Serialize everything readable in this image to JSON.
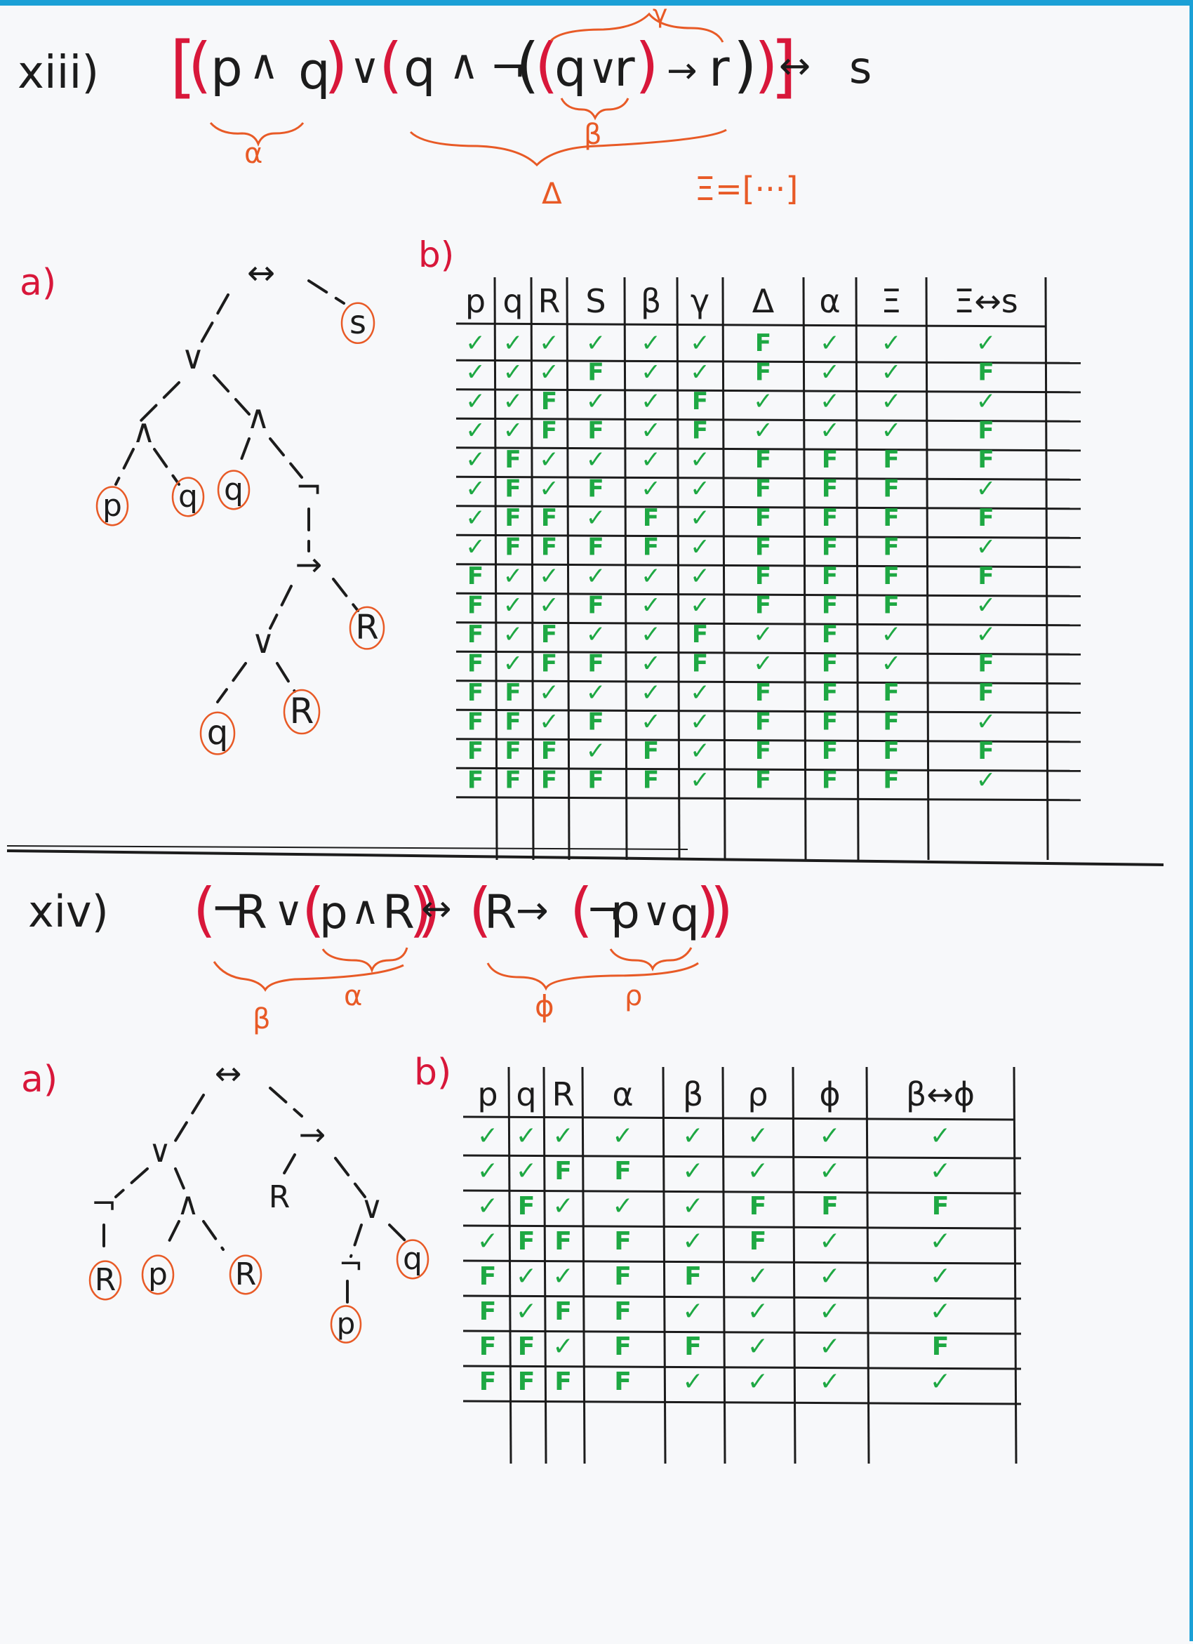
{
  "colors": {
    "ink": "#1c1c1c",
    "red": "#d8173a",
    "orange": "#e85a26",
    "green": "#1ea843",
    "paper": "#f7f8fa",
    "edge": "#1ba0d6"
  },
  "problem1": {
    "number": "xiii)",
    "formula_tokens": [
      "[",
      "(",
      "p",
      "∧",
      "q",
      ")",
      "∨",
      "(",
      "q",
      "∧",
      "¬",
      "(",
      "(",
      "q",
      "∨",
      "r",
      ")",
      "→",
      "r",
      ")",
      ")",
      "]",
      "↔",
      "s"
    ],
    "formula_text": "[(p ∧ q) ∨ (q ∧ ¬((q ∨ r) → r))] ↔ s",
    "sub_labels": {
      "alpha": "α",
      "beta": "β",
      "gamma": "γ",
      "delta": "Δ"
    },
    "xi_note": "Ξ=[···]",
    "part_a_label": "a)",
    "part_b_label": "b)",
    "tree": {
      "root": "↔",
      "nodes": [
        "↔",
        "∨",
        "s",
        "∧",
        "∧",
        "p",
        "q",
        "q",
        "¬",
        "→",
        "∨",
        "R",
        "q",
        "R"
      ],
      "leaves": [
        "p",
        "q",
        "q",
        "R",
        "q",
        "R",
        "s"
      ]
    },
    "table": {
      "headers": [
        "p",
        "q",
        "R",
        "S",
        "β",
        "γ",
        "Δ",
        "α",
        "Ξ",
        "Ξ↔s"
      ],
      "rows": [
        [
          "✓",
          "✓",
          "✓",
          "✓",
          "✓",
          "✓",
          "F",
          "✓",
          "✓",
          "✓"
        ],
        [
          "✓",
          "✓",
          "✓",
          "F",
          "✓",
          "✓",
          "F",
          "✓",
          "✓",
          "F"
        ],
        [
          "✓",
          "✓",
          "F",
          "✓",
          "✓",
          "F",
          "✓",
          "✓",
          "✓",
          "✓"
        ],
        [
          "✓",
          "✓",
          "F",
          "F",
          "✓",
          "F",
          "✓",
          "✓",
          "✓",
          "F"
        ],
        [
          "✓",
          "F",
          "✓",
          "✓",
          "✓",
          "✓",
          "F",
          "F",
          "F",
          "F"
        ],
        [
          "✓",
          "F",
          "✓",
          "F",
          "✓",
          "✓",
          "F",
          "F",
          "F",
          "✓"
        ],
        [
          "✓",
          "F",
          "F",
          "✓",
          "F",
          "✓",
          "F",
          "F",
          "F",
          "F"
        ],
        [
          "✓",
          "F",
          "F",
          "F",
          "F",
          "✓",
          "F",
          "F",
          "F",
          "✓"
        ],
        [
          "F",
          "✓",
          "✓",
          "✓",
          "✓",
          "✓",
          "F",
          "F",
          "F",
          "F"
        ],
        [
          "F",
          "✓",
          "✓",
          "F",
          "✓",
          "✓",
          "F",
          "F",
          "F",
          "✓"
        ],
        [
          "F",
          "✓",
          "F",
          "✓",
          "✓",
          "F",
          "✓",
          "F",
          "✓",
          "✓"
        ],
        [
          "F",
          "✓",
          "F",
          "F",
          "✓",
          "F",
          "✓",
          "F",
          "✓",
          "F"
        ],
        [
          "F",
          "F",
          "✓",
          "✓",
          "✓",
          "✓",
          "F",
          "F",
          "F",
          "F"
        ],
        [
          "F",
          "F",
          "✓",
          "F",
          "✓",
          "✓",
          "F",
          "F",
          "F",
          "✓"
        ],
        [
          "F",
          "F",
          "F",
          "✓",
          "F",
          "✓",
          "F",
          "F",
          "F",
          "F"
        ],
        [
          "F",
          "F",
          "F",
          "F",
          "F",
          "✓",
          "F",
          "F",
          "F",
          "✓"
        ]
      ]
    }
  },
  "problem2": {
    "number": "xiv)",
    "formula_tokens": [
      "(",
      "¬",
      "R",
      "∨",
      "(",
      "p",
      "∧",
      "R",
      ")",
      ")",
      "↔",
      "(",
      "R",
      "→",
      "(",
      "¬",
      "p",
      "∨",
      "q",
      ")",
      ")"
    ],
    "formula_text": "(¬R ∨ (p ∧ R)) ↔ (R → (¬p ∨ q))",
    "sub_labels": {
      "alpha": "α",
      "beta": "β",
      "phi": "ϕ",
      "rho": "ρ"
    },
    "part_a_label": "a)",
    "part_b_label": "b)",
    "tree": {
      "root": "↔",
      "nodes": [
        "↔",
        "∨",
        "→",
        "¬",
        "∧",
        "R",
        "∨",
        "R",
        "p",
        "R",
        "¬",
        "q",
        "p"
      ],
      "leaves": [
        "R",
        "p",
        "R",
        "R",
        "q",
        "p"
      ]
    },
    "table": {
      "headers": [
        "p",
        "q",
        "R",
        "α",
        "β",
        "ρ",
        "ϕ",
        "β↔ϕ"
      ],
      "rows": [
        [
          "✓",
          "✓",
          "✓",
          "✓",
          "✓",
          "✓",
          "✓",
          "✓"
        ],
        [
          "✓",
          "✓",
          "F",
          "F",
          "✓",
          "✓",
          "✓",
          "✓"
        ],
        [
          "✓",
          "F",
          "✓",
          "✓",
          "✓",
          "F",
          "F",
          "F"
        ],
        [
          "✓",
          "F",
          "F",
          "F",
          "✓",
          "F",
          "✓",
          "✓"
        ],
        [
          "F",
          "✓",
          "✓",
          "F",
          "F",
          "✓",
          "✓",
          "✓"
        ],
        [
          "F",
          "✓",
          "F",
          "F",
          "✓",
          "✓",
          "✓",
          "✓"
        ],
        [
          "F",
          "F",
          "✓",
          "F",
          "F",
          "✓",
          "✓",
          "F"
        ],
        [
          "F",
          "F",
          "F",
          "F",
          "✓",
          "✓",
          "✓",
          "✓"
        ]
      ]
    }
  }
}
